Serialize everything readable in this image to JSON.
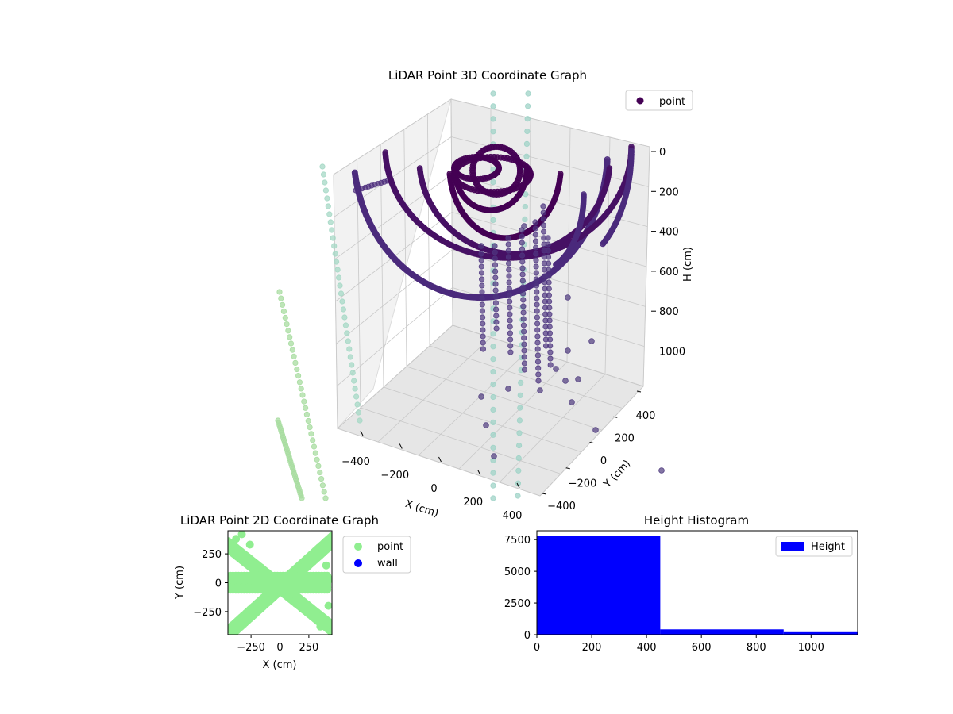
{
  "chart_data": [
    {
      "type": "scatter3d",
      "title": "LiDAR Point 3D Coordinate Graph",
      "xlabel": "X (cm)",
      "ylabel": "Y (cm)",
      "zlabel": "H (cm)",
      "x_ticks": [
        "−400",
        "−200",
        "0",
        "200",
        "400"
      ],
      "y_ticks": [
        "−400",
        "−200",
        "0",
        "200",
        "400"
      ],
      "z_ticks": [
        "0",
        "200",
        "400",
        "600",
        "800",
        "1000"
      ],
      "xlim": [
        -450,
        450
      ],
      "ylim": [
        -450,
        450
      ],
      "zlim": [
        0,
        1170
      ],
      "z_inverted": true,
      "grid": true,
      "legend": {
        "position": "top-right",
        "entries": [
          "point"
        ]
      },
      "colors": {
        "near": "#440154",
        "mid": "#3b528b",
        "far": "#90d743",
        "projection": "#5ec962"
      }
    },
    {
      "type": "scatter",
      "title": "LiDAR Point 2D Coordinate Graph",
      "xlabel": "X (cm)",
      "ylabel": "Y (cm)",
      "x_ticks": [
        "−250",
        "0",
        "250"
      ],
      "y_ticks": [
        "250",
        "0",
        "−250"
      ],
      "xlim": [
        -450,
        450
      ],
      "ylim": [
        -450,
        450
      ],
      "legend": {
        "position": "right",
        "entries": [
          "point",
          "wall"
        ]
      },
      "series": [
        {
          "name": "point",
          "color": "#90ee90"
        },
        {
          "name": "wall",
          "color": "#0000ff"
        }
      ]
    },
    {
      "type": "bar",
      "title": "Height Histogram",
      "x_ticks": [
        "0",
        "200",
        "400",
        "600",
        "800",
        "1000"
      ],
      "y_ticks": [
        "0",
        "2500",
        "5000",
        "7500"
      ],
      "xlim": [
        0,
        1170
      ],
      "ylim": [
        0,
        8200
      ],
      "bins": [
        {
          "from": 0,
          "to": 450,
          "count": 7820
        },
        {
          "from": 450,
          "to": 900,
          "count": 420
        },
        {
          "from": 900,
          "to": 1170,
          "count": 200
        }
      ],
      "legend": {
        "position": "top-right",
        "entries": [
          "Height"
        ]
      },
      "color": "#0000ff"
    }
  ]
}
